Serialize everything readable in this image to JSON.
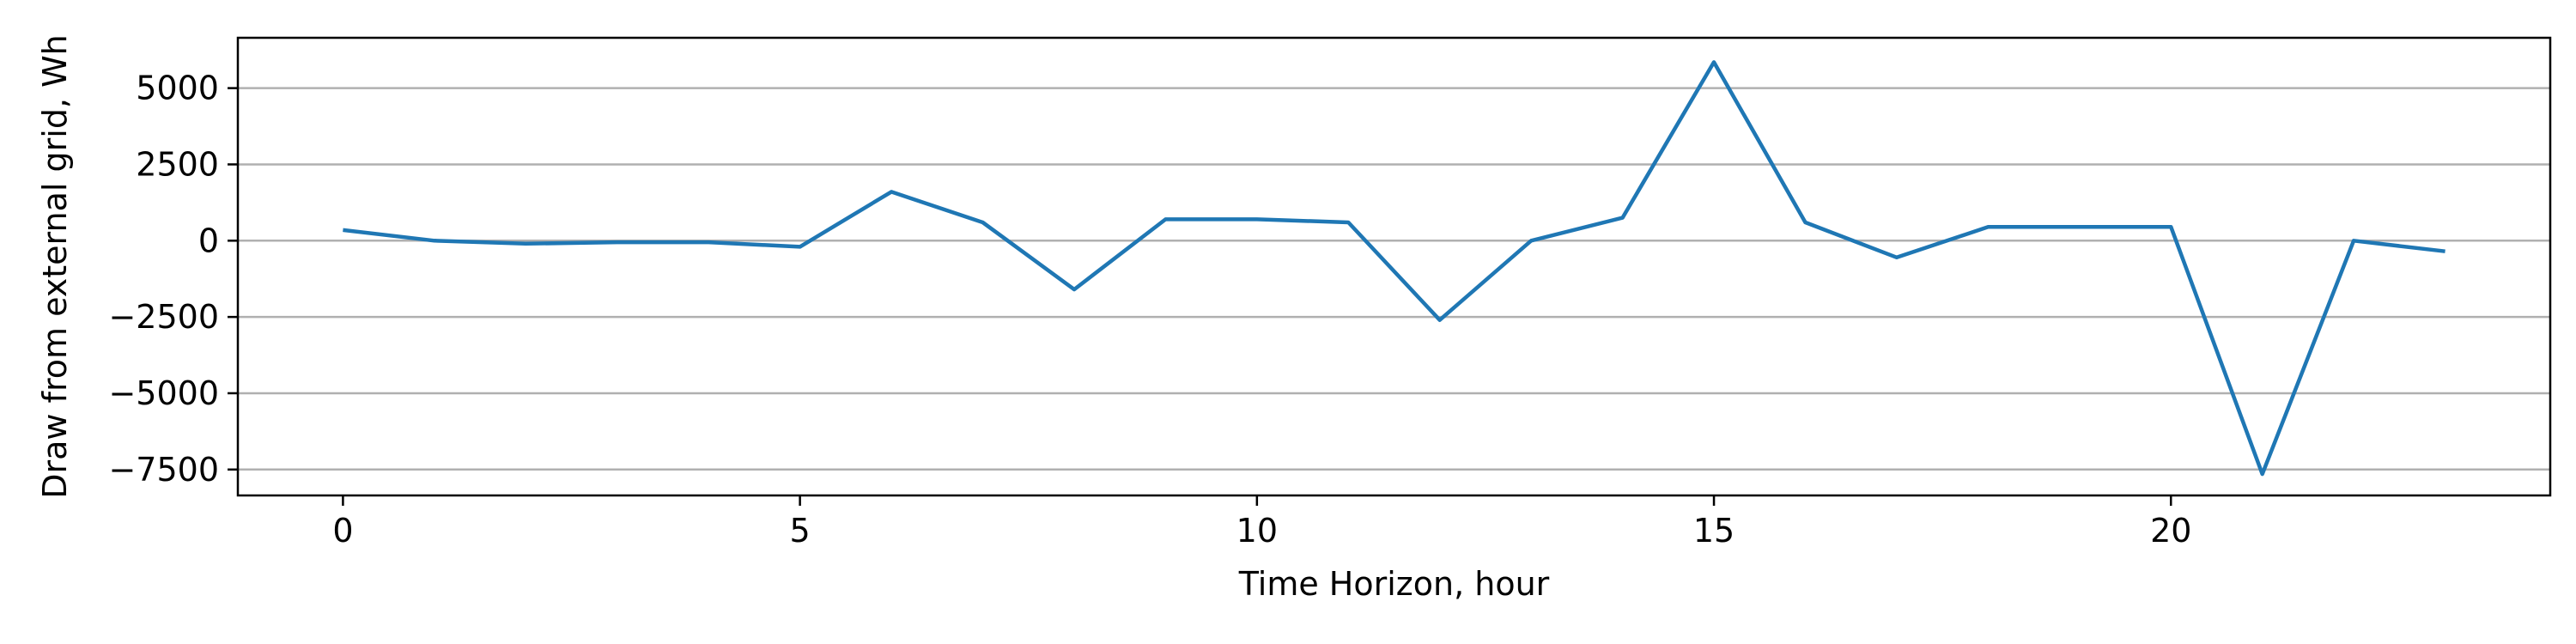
{
  "chart_data": {
    "type": "line",
    "title": "",
    "xlabel": "Time Horizon, hour",
    "ylabel": "Draw from external grid, Wh",
    "xlim": [
      -1.15,
      24.15
    ],
    "ylim": [
      -8350,
      6650
    ],
    "x_ticks": [
      0,
      5,
      10,
      15,
      20
    ],
    "y_ticks": [
      -7500,
      -5000,
      -2500,
      0,
      2500,
      5000
    ],
    "y_tick_labels": [
      "−7500",
      "−5000",
      "−2500",
      "0",
      "2500",
      "5000"
    ],
    "grid": "y",
    "legend": "none",
    "series": [
      {
        "color": "#1f77b4",
        "x": [
          0,
          1,
          2,
          3,
          4,
          5,
          6,
          7,
          8,
          9,
          10,
          11,
          12,
          13,
          14,
          15,
          16,
          17,
          18,
          19,
          20,
          21,
          22,
          23
        ],
        "y": [
          350,
          0,
          -100,
          -50,
          -50,
          -200,
          1600,
          600,
          -1600,
          700,
          700,
          600,
          -2600,
          0,
          750,
          5850,
          600,
          -550,
          450,
          450,
          450,
          -7650,
          0,
          -350
        ]
      }
    ]
  }
}
